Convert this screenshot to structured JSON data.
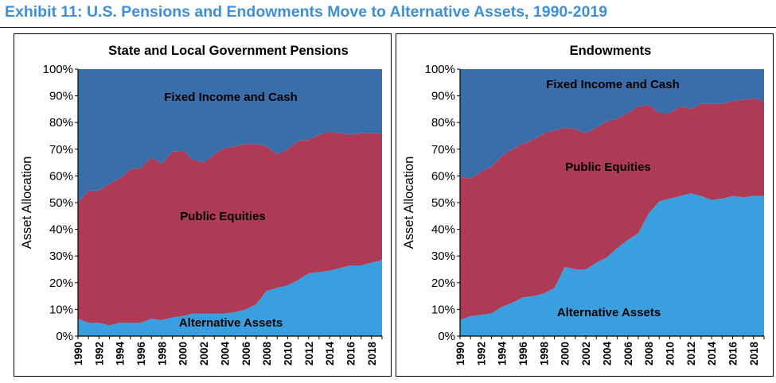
{
  "page_title": "Exhibit 11: U.S. Pensions and Endowments Move to Alternative Assets, 1990-2019",
  "colors": {
    "title": "#3f8fd6",
    "fixed_income": "#3a6eab",
    "public_equities": "#ad3b55",
    "alternative_assets": "#3a9fdf"
  },
  "chart_data": [
    {
      "type": "area",
      "stacked": true,
      "title": "State and Local Government Pensions",
      "ylabel": "Asset Allocation",
      "xlabel": "",
      "ylim": [
        0,
        100
      ],
      "yticks": [
        "0%",
        "10%",
        "20%",
        "30%",
        "40%",
        "50%",
        "60%",
        "70%",
        "80%",
        "90%",
        "100%"
      ],
      "xtick_labels": [
        "1990",
        "1992",
        "1994",
        "1996",
        "1998",
        "2000",
        "2002",
        "2004",
        "2006",
        "2008",
        "2010",
        "2012",
        "2014",
        "2016",
        "2018"
      ],
      "grid": false,
      "x": [
        1990,
        1991,
        1992,
        1993,
        1994,
        1995,
        1996,
        1997,
        1998,
        1999,
        2000,
        2001,
        2002,
        2003,
        2004,
        2005,
        2006,
        2007,
        2008,
        2009,
        2010,
        2011,
        2012,
        2013,
        2014,
        2015,
        2016,
        2017,
        2018,
        2019
      ],
      "series": [
        {
          "name": "Alternative Assets",
          "values": [
            6.5,
            5,
            5,
            4,
            5,
            5,
            5,
            6.5,
            6,
            7,
            7.5,
            8.5,
            8.5,
            8.5,
            8.5,
            9,
            10,
            12,
            17,
            18,
            19,
            21,
            23.5,
            24,
            24.5,
            25.5,
            26.5,
            26.5,
            27.5,
            28.5
          ]
        },
        {
          "name": "Public Equities",
          "values": [
            43.5,
            49.5,
            49.5,
            53,
            54,
            57.5,
            58,
            60.5,
            58.5,
            62,
            62,
            57.5,
            56.5,
            59.5,
            62,
            62,
            62,
            60,
            54,
            50,
            51,
            52,
            50,
            51.5,
            52,
            50.5,
            49,
            49.5,
            48.5,
            47.5
          ]
        },
        {
          "name": "Fixed Income and Cash",
          "values": [
            50,
            45.5,
            45.5,
            43,
            41,
            37.5,
            37,
            33,
            35.5,
            31,
            30.5,
            34,
            35,
            32,
            29.5,
            29,
            28,
            28,
            29,
            32,
            30,
            27,
            26.5,
            24.5,
            23.5,
            24,
            24.5,
            24,
            24,
            24
          ]
        }
      ]
    },
    {
      "type": "area",
      "stacked": true,
      "title": "Endowments",
      "ylabel": "Asset Allocation",
      "xlabel": "",
      "ylim": [
        0,
        100
      ],
      "yticks": [
        "0%",
        "10%",
        "20%",
        "30%",
        "40%",
        "50%",
        "60%",
        "70%",
        "80%",
        "90%",
        "100%"
      ],
      "xtick_labels": [
        "1990",
        "1992",
        "1994",
        "1996",
        "1998",
        "2000",
        "2002",
        "2004",
        "2006",
        "2008",
        "2010",
        "2012",
        "2014",
        "2016",
        "2018"
      ],
      "grid": false,
      "x": [
        1990,
        1991,
        1992,
        1993,
        1994,
        1995,
        1996,
        1997,
        1998,
        1999,
        2000,
        2001,
        2002,
        2003,
        2004,
        2005,
        2006,
        2007,
        2008,
        2009,
        2010,
        2011,
        2012,
        2013,
        2014,
        2015,
        2016,
        2017,
        2018,
        2019
      ],
      "series": [
        {
          "name": "Alternative Assets",
          "values": [
            6,
            7.5,
            8,
            8.5,
            11,
            12.5,
            14.5,
            15,
            16,
            18,
            26,
            25,
            25,
            27.5,
            29.5,
            33,
            36,
            38.5,
            46,
            50.5,
            51.5,
            52.5,
            53.5,
            52.5,
            51,
            51.5,
            52.5,
            52,
            52.5,
            52.5
          ]
        },
        {
          "name": "Public Equities",
          "values": [
            53.5,
            51.5,
            53.5,
            55,
            56.5,
            57.5,
            57.5,
            58.5,
            60,
            59,
            52,
            52.5,
            51,
            50.5,
            51,
            48.5,
            47.5,
            47.5,
            40.5,
            33,
            32,
            33.5,
            31.5,
            34.5,
            36,
            35.5,
            35.5,
            36.5,
            36.5,
            35.5
          ]
        },
        {
          "name": "Fixed Income and Cash",
          "values": [
            40.5,
            41,
            38.5,
            36.5,
            32.5,
            30,
            28,
            26.5,
            24,
            23,
            22,
            22.5,
            24,
            22,
            19.5,
            18.5,
            16.5,
            14,
            13.5,
            16.5,
            16.5,
            14,
            15,
            13,
            13,
            13,
            12,
            11.5,
            11,
            12
          ]
        }
      ]
    }
  ]
}
